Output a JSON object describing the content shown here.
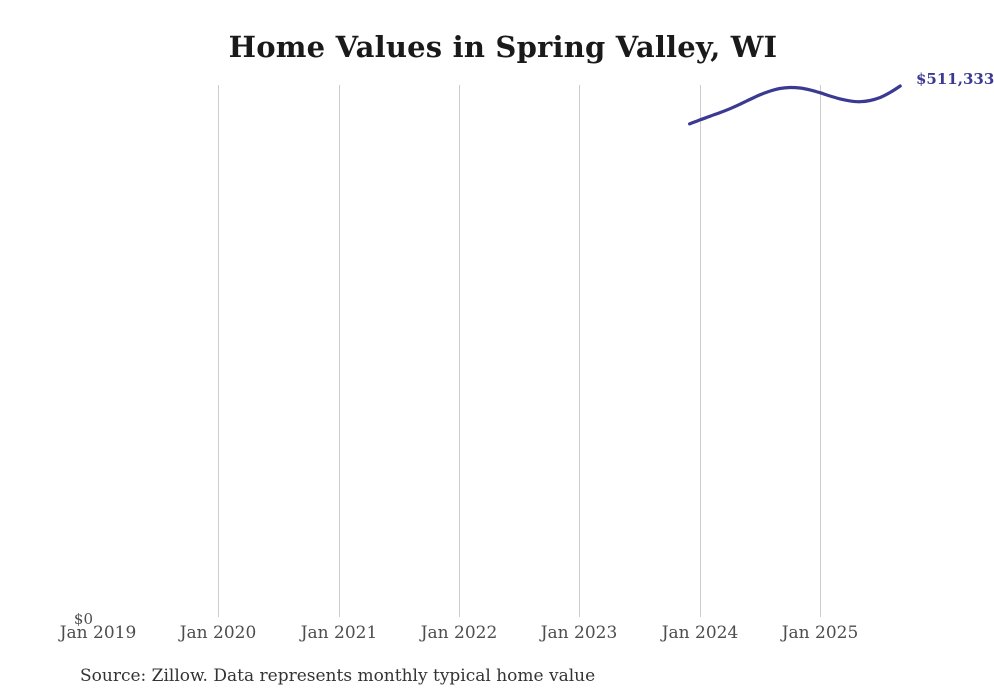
{
  "page": {
    "title": "Home Values in Spring Valley, WI"
  },
  "chart_data": {
    "type": "line",
    "title": "Home Values in Spring Valley, WI",
    "xlabel": "",
    "ylabel": "",
    "source": "Source: Zillow. Data represents monthly typical home value",
    "x_ticks": [
      "Jan 2019",
      "Jan 2020",
      "Jan 2021",
      "Jan 2022",
      "Jan 2023",
      "Jan 2024",
      "Jan 2025"
    ],
    "y_tick_labels": [
      "$0"
    ],
    "y_axis": {
      "min": 0,
      "latest_value": 511333
    },
    "grid": "vertical-only",
    "legend": "none",
    "line_color": "#3b3a92",
    "gridline_color": "#cccccc",
    "end_label": "$511,333",
    "series": [
      {
        "name": "Typical home value",
        "points": [
          {
            "date": "2023-12",
            "value": 474800
          },
          {
            "date": "2024-01",
            "value": 478600
          },
          {
            "date": "2024-02",
            "value": 482100
          },
          {
            "date": "2024-03",
            "value": 485600
          },
          {
            "date": "2024-04",
            "value": 489400
          },
          {
            "date": "2024-05",
            "value": 493700
          },
          {
            "date": "2024-06",
            "value": 498300
          },
          {
            "date": "2024-07",
            "value": 502800
          },
          {
            "date": "2024-08",
            "value": 506400
          },
          {
            "date": "2024-09",
            "value": 508900
          },
          {
            "date": "2024-10",
            "value": 509900
          },
          {
            "date": "2024-11",
            "value": 509400
          },
          {
            "date": "2024-12",
            "value": 507600
          },
          {
            "date": "2025-01",
            "value": 504900
          },
          {
            "date": "2025-02",
            "value": 501700
          },
          {
            "date": "2025-03",
            "value": 498900
          },
          {
            "date": "2025-04",
            "value": 497000
          },
          {
            "date": "2025-05",
            "value": 496200
          },
          {
            "date": "2025-06",
            "value": 497400
          },
          {
            "date": "2025-07",
            "value": 500300
          },
          {
            "date": "2025-08",
            "value": 505200
          },
          {
            "date": "2025-09",
            "value": 511333
          }
        ]
      }
    ]
  }
}
